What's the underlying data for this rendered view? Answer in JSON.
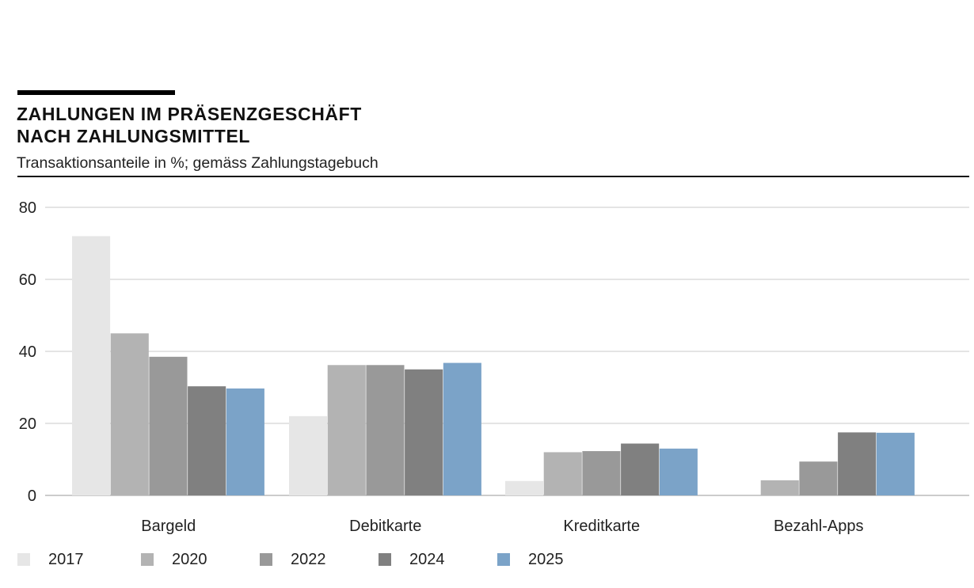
{
  "header": {
    "title_line1": "ZAHLUNGEN IM PRÄSENZGESCHÄFT",
    "title_line2": "NACH ZAHLUNGSMITTEL",
    "subtitle": "Transaktionsanteile in %; gemäss Zahlungstagebuch"
  },
  "chart_data": {
    "type": "bar",
    "title": "ZAHLUNGEN IM PRÄSENZGESCHÄFT NACH ZAHLUNGSMITTEL",
    "subtitle": "Transaktionsanteile in %; gemäss Zahlungstagebuch",
    "xlabel": "",
    "ylabel": "",
    "ylim": [
      0,
      80
    ],
    "yticks": [
      0,
      20,
      40,
      60,
      80
    ],
    "grid": true,
    "legend_position": "bottom-left",
    "categories": [
      "Bargeld",
      "Debitkarte",
      "Kreditkarte",
      "Bezahl-Apps"
    ],
    "series": [
      {
        "name": "2017",
        "color": "#e6e6e6",
        "values": [
          72,
          22,
          4,
          null
        ]
      },
      {
        "name": "2020",
        "color": "#b3b3b3",
        "values": [
          45,
          36.2,
          12,
          4.2
        ]
      },
      {
        "name": "2022",
        "color": "#999999",
        "values": [
          38.5,
          36.2,
          12.3,
          9.4
        ]
      },
      {
        "name": "2024",
        "color": "#808080",
        "values": [
          30.3,
          35,
          14.4,
          17.5
        ]
      },
      {
        "name": "2025",
        "color": "#7ba3c8",
        "values": [
          29.7,
          36.8,
          13,
          17.4
        ]
      }
    ]
  }
}
